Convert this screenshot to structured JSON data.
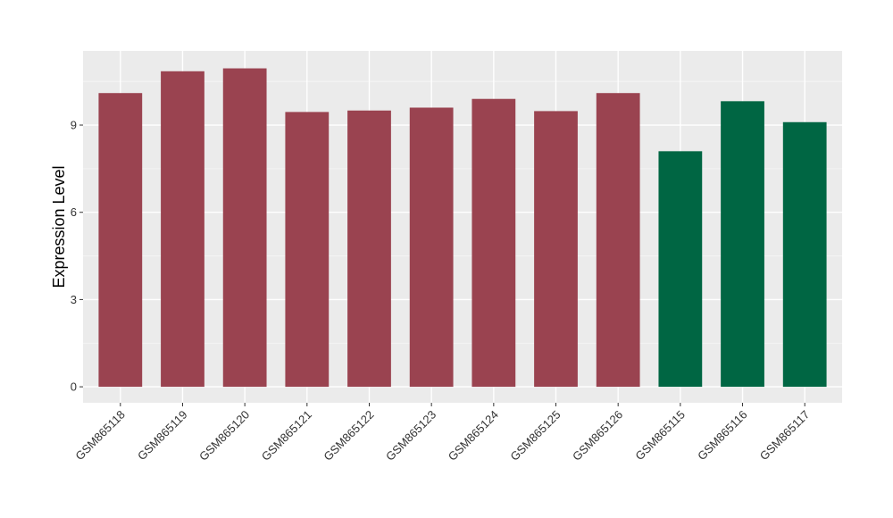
{
  "chart_data": {
    "type": "bar",
    "title": "",
    "xlabel": "",
    "ylabel": "Expression Level",
    "ylim": [
      -0.55,
      11.55
    ],
    "yticks": [
      0,
      3,
      6,
      9
    ],
    "grid": true,
    "legend": "none",
    "categories": [
      "GSM865118",
      "GSM865119",
      "GSM865120",
      "GSM865121",
      "GSM865122",
      "GSM865123",
      "GSM865124",
      "GSM865125",
      "GSM865126",
      "GSM865115",
      "GSM865116",
      "GSM865117"
    ],
    "values": [
      10.1,
      10.85,
      10.95,
      9.45,
      9.5,
      9.6,
      9.9,
      9.48,
      10.1,
      8.1,
      9.82,
      9.1
    ],
    "groups": [
      "a",
      "a",
      "a",
      "a",
      "a",
      "a",
      "a",
      "a",
      "a",
      "b",
      "b",
      "b"
    ],
    "colors": {
      "a": "#9a4350",
      "b": "#006643",
      "panel": "#ebebeb",
      "grid_major": "#ffffff",
      "grid_minor": "#f5f5f5"
    }
  }
}
